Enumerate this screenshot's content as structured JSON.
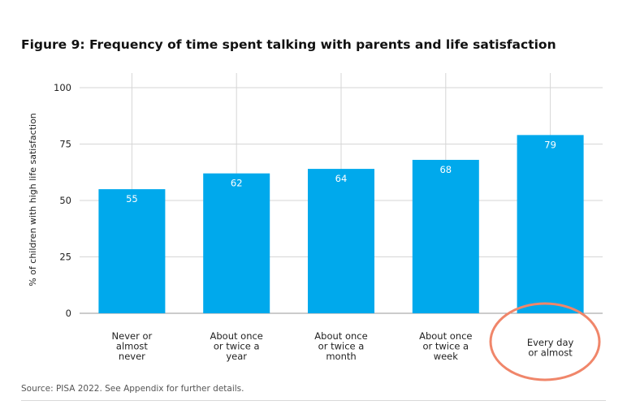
{
  "chart_data": {
    "type": "bar",
    "title": "Figure 9: Frequency of time spent talking with parents and life satisfaction",
    "xlabel": "",
    "ylabel": "% of children with high life satisfaction",
    "ylim": [
      0,
      100
    ],
    "yticks": [
      0,
      25,
      50,
      75,
      100
    ],
    "grid": true,
    "categories": [
      "Never or almost never",
      "About once or twice a year",
      "About once or twice a month",
      "About once or twice a week",
      "Every day or almost"
    ],
    "category_lines": [
      [
        "Never or",
        "almost",
        "never"
      ],
      [
        "About once",
        "or twice a",
        "year"
      ],
      [
        "About once",
        "or twice a",
        "month"
      ],
      [
        "About once",
        "or twice a",
        "week"
      ],
      [
        "Every day",
        "or almost"
      ]
    ],
    "values": [
      55,
      62,
      64,
      68,
      79
    ],
    "data_labels": [
      "55",
      "62",
      "64",
      "68",
      "79"
    ],
    "highlight": "Every day or almost",
    "bar_color": "#00a9ec",
    "highlight_color": "#f0866a"
  },
  "source": "Source: PISA 2022. See Appendix for further details."
}
